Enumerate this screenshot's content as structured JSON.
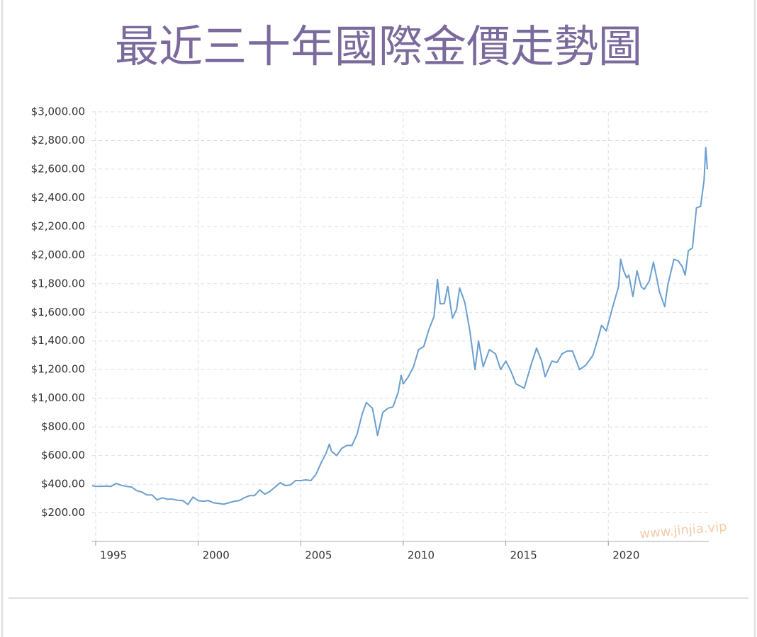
{
  "chart_data": {
    "type": "line",
    "title": "最近三十年國際金價走勢圖",
    "watermark": "www.jinjia.vip",
    "color": "#6a9fcf",
    "grid": true,
    "xlim": [
      1994.83,
      2024.9
    ],
    "xticks": [
      1995,
      2000,
      2005,
      2010,
      2015,
      2020
    ],
    "ylim": [
      0,
      3000
    ],
    "yticks": [
      {
        "value": 200,
        "label": "$200.00"
      },
      {
        "value": 400,
        "label": "$400.00"
      },
      {
        "value": 600,
        "label": "$600.00"
      },
      {
        "value": 800,
        "label": "$800.00"
      },
      {
        "value": 1000,
        "label": "$1,000.00"
      },
      {
        "value": 1200,
        "label": "$1,200.00"
      },
      {
        "value": 1400,
        "label": "$1,400.00"
      },
      {
        "value": 1600,
        "label": "$1,600.00"
      },
      {
        "value": 1800,
        "label": "$1,800.00"
      },
      {
        "value": 2000,
        "label": "$2,000.00"
      },
      {
        "value": 2200,
        "label": "$2,200.00"
      },
      {
        "value": 2400,
        "label": "$2,400.00"
      },
      {
        "value": 2600,
        "label": "$2,600.00"
      },
      {
        "value": 2800,
        "label": "$2,800.00"
      },
      {
        "value": 3000,
        "label": "$3,000.00"
      }
    ],
    "x": [
      1994.83,
      1995.0,
      1995.25,
      1995.5,
      1995.75,
      1996.0,
      1996.25,
      1996.5,
      1996.75,
      1997.0,
      1997.25,
      1997.5,
      1997.75,
      1998.0,
      1998.25,
      1998.5,
      1998.75,
      1999.0,
      1999.25,
      1999.5,
      1999.75,
      2000.0,
      2000.25,
      2000.5,
      2000.75,
      2001.0,
      2001.25,
      2001.5,
      2001.75,
      2002.0,
      2002.25,
      2002.5,
      2002.75,
      2003.0,
      2003.25,
      2003.5,
      2003.75,
      2004.0,
      2004.25,
      2004.5,
      2004.75,
      2005.0,
      2005.25,
      2005.5,
      2005.75,
      2006.0,
      2006.25,
      2006.4,
      2006.5,
      2006.75,
      2007.0,
      2007.25,
      2007.5,
      2007.75,
      2008.0,
      2008.2,
      2008.5,
      2008.75,
      2009.0,
      2009.25,
      2009.5,
      2009.75,
      2009.9,
      2010.0,
      2010.25,
      2010.5,
      2010.75,
      2011.0,
      2011.25,
      2011.5,
      2011.67,
      2011.8,
      2012.0,
      2012.17,
      2012.4,
      2012.6,
      2012.75,
      2013.0,
      2013.25,
      2013.5,
      2013.67,
      2013.9,
      2014.2,
      2014.5,
      2014.75,
      2015.0,
      2015.25,
      2015.5,
      2015.9,
      2016.25,
      2016.5,
      2016.75,
      2016.92,
      2017.25,
      2017.5,
      2017.75,
      2018.0,
      2018.25,
      2018.6,
      2018.9,
      2019.25,
      2019.5,
      2019.67,
      2019.9,
      2020.2,
      2020.5,
      2020.6,
      2020.75,
      2020.9,
      2021.0,
      2021.2,
      2021.4,
      2021.6,
      2021.75,
      2022.0,
      2022.2,
      2022.5,
      2022.75,
      2022.9,
      2023.2,
      2023.4,
      2023.6,
      2023.75,
      2023.9,
      2024.1,
      2024.3,
      2024.5,
      2024.67,
      2024.75,
      2024.83
    ],
    "values": [
      390,
      385,
      385,
      387,
      384,
      405,
      392,
      385,
      380,
      355,
      345,
      325,
      325,
      290,
      305,
      295,
      295,
      287,
      285,
      258,
      310,
      285,
      280,
      285,
      270,
      265,
      260,
      270,
      280,
      285,
      305,
      320,
      320,
      360,
      330,
      350,
      380,
      410,
      390,
      395,
      425,
      425,
      430,
      425,
      470,
      550,
      620,
      680,
      630,
      600,
      650,
      670,
      670,
      750,
      890,
      970,
      930,
      740,
      900,
      930,
      940,
      1040,
      1160,
      1100,
      1150,
      1220,
      1340,
      1360,
      1480,
      1570,
      1830,
      1660,
      1660,
      1780,
      1560,
      1620,
      1770,
      1670,
      1470,
      1200,
      1400,
      1220,
      1340,
      1310,
      1200,
      1260,
      1190,
      1100,
      1070,
      1240,
      1350,
      1260,
      1150,
      1260,
      1250,
      1310,
      1330,
      1330,
      1200,
      1230,
      1300,
      1420,
      1510,
      1470,
      1630,
      1780,
      1970,
      1890,
      1840,
      1860,
      1710,
      1890,
      1780,
      1760,
      1820,
      1950,
      1740,
      1640,
      1790,
      1970,
      1960,
      1920,
      1860,
      2030,
      2050,
      2330,
      2340,
      2520,
      2750,
      2600
    ]
  }
}
